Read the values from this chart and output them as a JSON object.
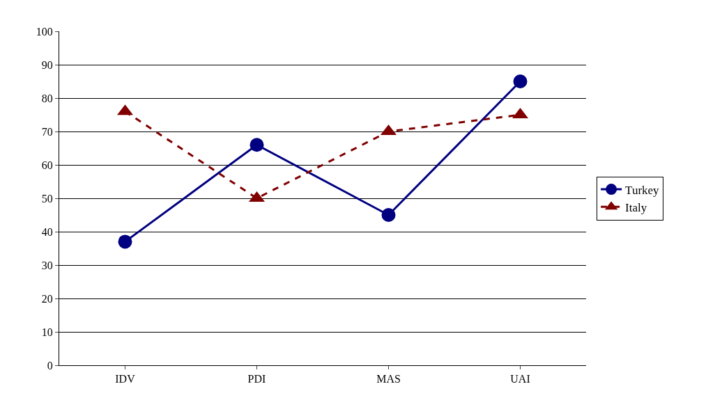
{
  "chart_data": {
    "type": "line",
    "categories": [
      "IDV",
      "PDI",
      "MAS",
      "UAI"
    ],
    "series": [
      {
        "name": "Turkey",
        "color": "#000080",
        "values": [
          37,
          66,
          45,
          85
        ],
        "marker": "circle",
        "line_style": "solid"
      },
      {
        "name": "Italy",
        "color": "#800000",
        "values": [
          76,
          50,
          70,
          75
        ],
        "marker": "triangle",
        "line_style": "dashed"
      }
    ],
    "ylim": [
      0,
      100
    ],
    "yticks": [
      0,
      10,
      20,
      30,
      40,
      50,
      60,
      70,
      80,
      90,
      100
    ],
    "grid": "y",
    "legend": "right"
  }
}
